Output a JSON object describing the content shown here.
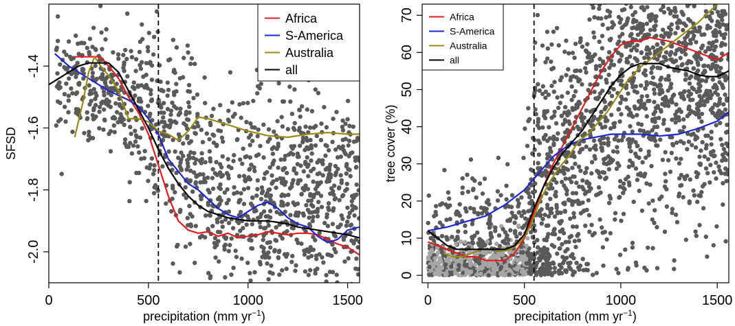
{
  "chart_data": [
    {
      "type": "scatter",
      "xlabel": "precipitation (mm yr",
      "xlabel_sup": "−1",
      "xlabel_end": ")",
      "ylabel": "SFSD",
      "xlim": [
        0,
        1560
      ],
      "ylim": [
        -2.1,
        -1.2
      ],
      "xticks": [
        0,
        500,
        1000,
        1500
      ],
      "yticks": [
        -2.0,
        -1.8,
        -1.6,
        -1.4
      ],
      "ytick_labels": [
        "-2.0",
        "-1.8",
        "-1.6",
        "-1.4"
      ],
      "y_tick_labels_rotated": true,
      "grid": false,
      "vline": 550,
      "legend_position": "top-right",
      "scatter_color": "#5a5a5a",
      "points_count": 1300,
      "series": [
        {
          "name": "Africa",
          "color": "#e8191b",
          "x": [
            130,
            200,
            260,
            300,
            350,
            400,
            450,
            500,
            550,
            600,
            650,
            700,
            750,
            800,
            850,
            900,
            950,
            1000,
            1050,
            1100,
            1150,
            1200,
            1250,
            1300,
            1350,
            1400,
            1450,
            1500,
            1560
          ],
          "y": [
            -1.37,
            -1.37,
            -1.37,
            -1.4,
            -1.44,
            -1.5,
            -1.55,
            -1.62,
            -1.72,
            -1.82,
            -1.9,
            -1.93,
            -1.94,
            -1.935,
            -1.95,
            -1.94,
            -1.955,
            -1.95,
            -1.945,
            -1.935,
            -1.94,
            -1.945,
            -1.94,
            -1.94,
            -1.945,
            -1.96,
            -1.975,
            -1.985,
            -2.01
          ]
        },
        {
          "name": "S-America",
          "color": "#1c25d6",
          "x": [
            30,
            100,
            200,
            300,
            400,
            450,
            500,
            550,
            600,
            650,
            700,
            750,
            800,
            850,
            900,
            950,
            1000,
            1050,
            1100,
            1150,
            1200,
            1250,
            1300,
            1350,
            1400,
            1450,
            1500,
            1560
          ],
          "y": [
            -1.36,
            -1.4,
            -1.44,
            -1.48,
            -1.51,
            -1.53,
            -1.57,
            -1.62,
            -1.7,
            -1.74,
            -1.78,
            -1.8,
            -1.83,
            -1.86,
            -1.88,
            -1.89,
            -1.87,
            -1.85,
            -1.84,
            -1.86,
            -1.89,
            -1.91,
            -1.92,
            -1.95,
            -1.97,
            -1.96,
            -1.93,
            -1.92
          ]
        },
        {
          "name": "Australia",
          "color": "#9b8a12",
          "x": [
            130,
            170,
            200,
            230,
            260,
            300,
            350,
            400,
            450,
            500,
            550,
            600,
            650,
            700,
            750,
            800,
            900,
            1000,
            1100,
            1200,
            1300,
            1400,
            1500,
            1560
          ],
          "y": [
            -1.63,
            -1.52,
            -1.42,
            -1.37,
            -1.4,
            -1.43,
            -1.48,
            -1.57,
            -1.57,
            -1.58,
            -1.61,
            -1.62,
            -1.64,
            -1.61,
            -1.565,
            -1.57,
            -1.59,
            -1.61,
            -1.625,
            -1.63,
            -1.62,
            -1.615,
            -1.62,
            -1.62
          ]
        },
        {
          "name": "all",
          "color": "#000000",
          "x": [
            0,
            50,
            100,
            150,
            200,
            250,
            300,
            350,
            400,
            450,
            500,
            550,
            600,
            650,
            700,
            750,
            800,
            850,
            900,
            950,
            1000,
            1050,
            1100,
            1150,
            1200,
            1250,
            1300,
            1350,
            1400,
            1450,
            1500,
            1560
          ],
          "y": [
            -1.46,
            -1.44,
            -1.42,
            -1.4,
            -1.39,
            -1.39,
            -1.39,
            -1.42,
            -1.48,
            -1.54,
            -1.6,
            -1.67,
            -1.73,
            -1.78,
            -1.82,
            -1.85,
            -1.87,
            -1.88,
            -1.89,
            -1.895,
            -1.9,
            -1.9,
            -1.9,
            -1.905,
            -1.91,
            -1.92,
            -1.925,
            -1.93,
            -1.935,
            -1.94,
            -1.945,
            -1.955
          ]
        }
      ]
    },
    {
      "type": "scatter",
      "xlabel": "precipitation (mm yr",
      "xlabel_sup": "−1",
      "xlabel_end": ")",
      "ylabel": "tree cover (%)",
      "xlim": [
        -30,
        1560
      ],
      "ylim": [
        -2,
        73
      ],
      "xticks": [
        0,
        500,
        1000,
        1500
      ],
      "yticks": [
        0,
        10,
        20,
        30,
        40,
        50,
        60,
        70
      ],
      "ytick_labels": [
        "0",
        "10",
        "20",
        "30",
        "40",
        "50",
        "60",
        "70"
      ],
      "y_tick_labels_rotated": true,
      "grid": false,
      "vline": 550,
      "legend_position": "top-left",
      "scatter_color": "#5a5a5a",
      "low_band_color": "#a6a6a6",
      "points_count": 2600,
      "series": [
        {
          "name": "Africa",
          "color": "#e8191b",
          "x": [
            0,
            50,
            100,
            150,
            200,
            250,
            300,
            350,
            400,
            450,
            500,
            550,
            600,
            650,
            700,
            750,
            800,
            850,
            900,
            950,
            1000,
            1050,
            1100,
            1150,
            1200,
            1250,
            1300,
            1350,
            1400,
            1450,
            1500,
            1560
          ],
          "y": [
            9,
            8,
            7,
            6,
            5,
            5,
            4,
            4,
            4,
            6,
            10,
            17,
            24,
            30,
            35,
            40,
            45,
            50,
            55,
            59,
            62,
            63,
            63,
            64,
            63.5,
            63,
            62,
            61,
            60,
            59,
            58,
            60
          ]
        },
        {
          "name": "S-America",
          "color": "#1c25d6",
          "x": [
            0,
            100,
            200,
            300,
            400,
            500,
            550,
            600,
            650,
            700,
            750,
            800,
            850,
            900,
            950,
            1000,
            1100,
            1200,
            1300,
            1400,
            1500,
            1560
          ],
          "y": [
            12,
            13,
            14.5,
            16,
            19,
            23,
            26,
            29,
            32,
            34,
            35.5,
            36.5,
            37,
            37.5,
            38,
            38,
            38,
            37.5,
            38,
            39.5,
            41.5,
            44
          ]
        },
        {
          "name": "Australia",
          "color": "#9b8a12",
          "x": [
            80,
            130,
            180,
            230,
            280,
            330,
            380,
            430,
            480,
            530,
            580,
            630,
            680,
            730,
            780,
            830,
            880,
            930,
            980,
            1030,
            1100,
            1200,
            1300,
            1400,
            1500
          ],
          "y": [
            6,
            5,
            5,
            6,
            7,
            7,
            6.5,
            7,
            9,
            13,
            20,
            25,
            29,
            32,
            36,
            38,
            41,
            44,
            48,
            52,
            56,
            60,
            64,
            68,
            73
          ]
        },
        {
          "name": "all",
          "color": "#000000",
          "x": [
            0,
            50,
            100,
            150,
            200,
            250,
            300,
            350,
            400,
            450,
            500,
            550,
            600,
            650,
            700,
            750,
            800,
            850,
            900,
            950,
            1000,
            1050,
            1100,
            1150,
            1200,
            1250,
            1300,
            1350,
            1400,
            1450,
            1500,
            1560
          ],
          "y": [
            12,
            10,
            8,
            7,
            7,
            7,
            7,
            7,
            7,
            8,
            11,
            18,
            24,
            29,
            33,
            36,
            39,
            43,
            47,
            51,
            54,
            56,
            57,
            57,
            57,
            56,
            55.5,
            55,
            54,
            53.5,
            53.5,
            55
          ]
        }
      ]
    }
  ]
}
